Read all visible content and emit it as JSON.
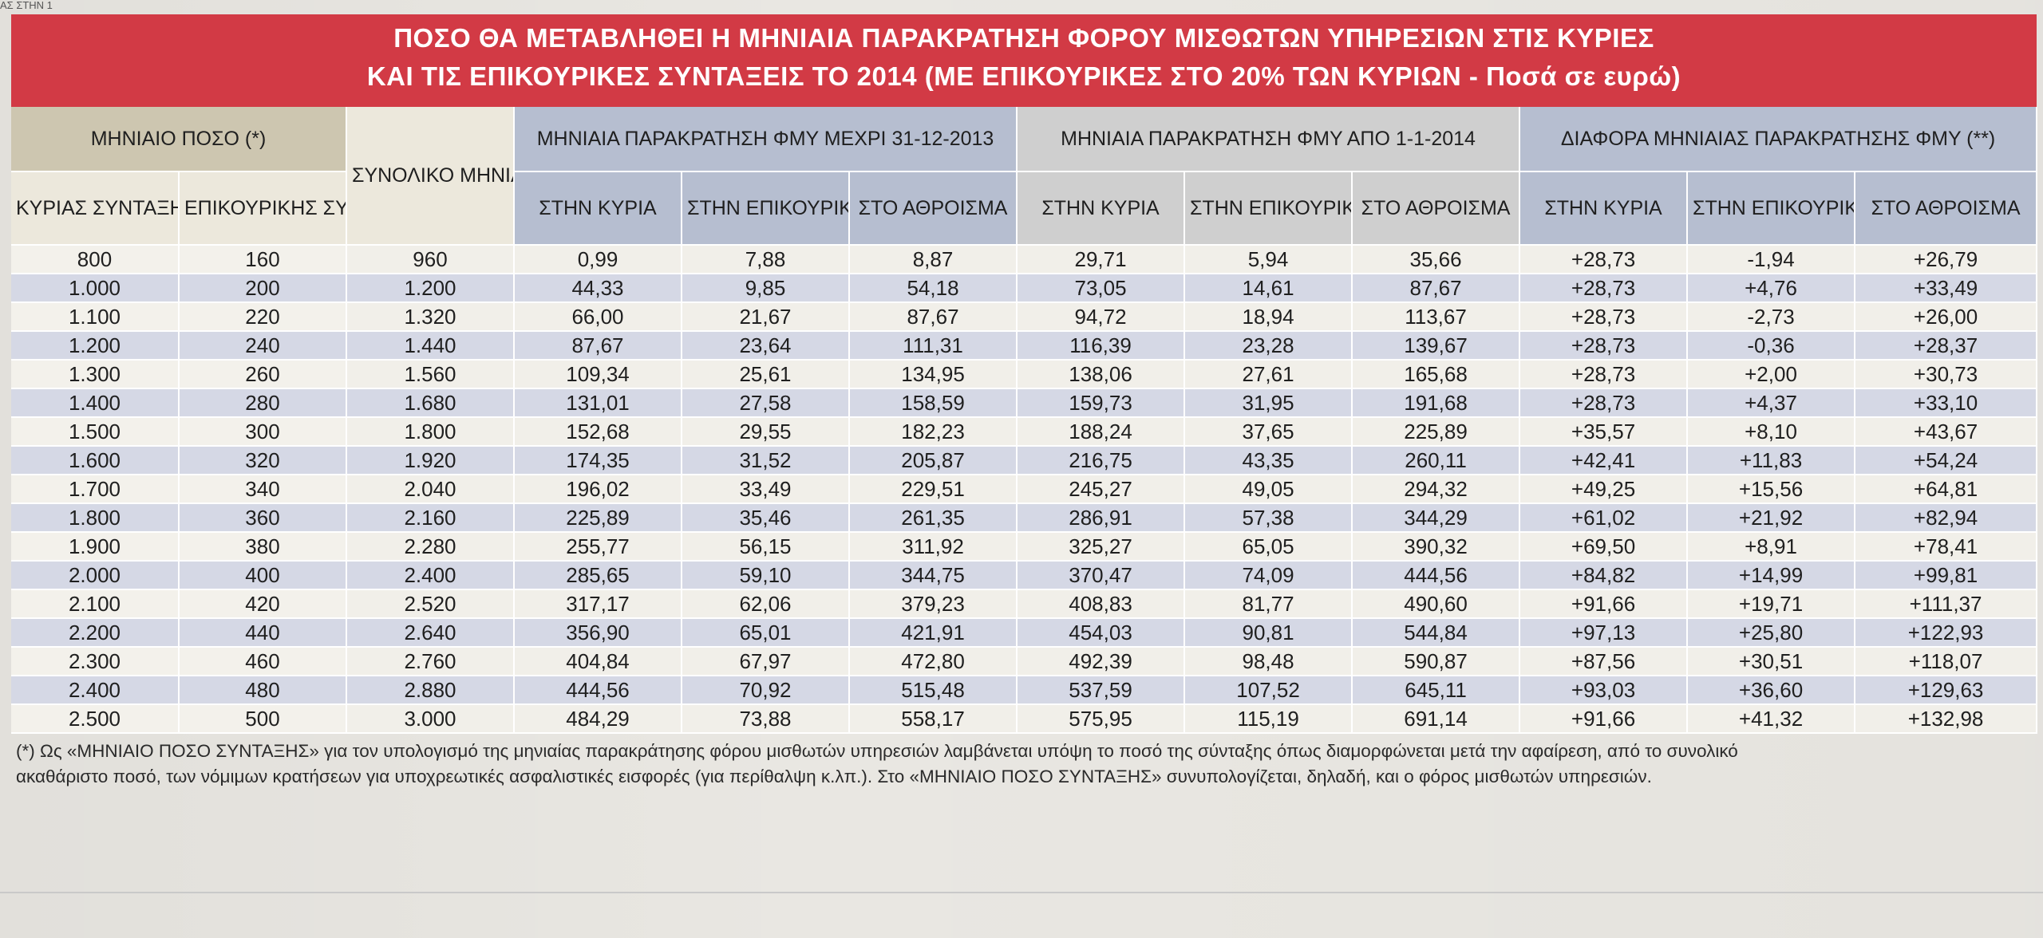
{
  "page_corner_text": "ΑΣ ΣΤΗΝ 1",
  "title": {
    "line1": "ΠΟΣΟ ΘΑ ΜΕΤΑΒΛΗΘΕΙ Η ΜΗΝΙΑΙΑ ΠΑΡΑΚΡΑΤΗΣΗ ΦΟΡΟΥ ΜΙΣΘΩΤΩΝ ΥΠΗΡΕΣΙΩΝ ΣΤΙΣ ΚΥΡΙΕΣ",
    "line2": "ΚΑΙ ΤΙΣ ΕΠΙΚΟΥΡΙΚΕΣ ΣΥΝΤΑΞΕΙΣ ΤΟ 2014  (ΜΕ ΕΠΙΚΟΥΡΙΚΕΣ ΣΤΟ 20% ΤΩΝ ΚΥΡΙΩΝ - Ποσά σε ευρώ)"
  },
  "header": {
    "group_monthly_amount": "ΜΗΝΙΑΙΟ ΠΟΣΟ (*)",
    "total_amount": "ΣΥΝΟΛΙΚΟ ΜΗΝΙΑΙΟ ΠΟΣΟ ΣΥΝΤΑΞΕΩΝ",
    "group_until_2013": "ΜΗΝΙΑΙΑ ΠΑΡΑΚΡΑΤΗΣΗ ΦΜΥ ΜΕΧΡΙ 31-12-2013",
    "group_from_2014": "ΜΗΝΙΑΙΑ ΠΑΡΑΚΡΑΤΗΣΗ ΦΜΥ ΑΠΟ 1-1-2014",
    "group_difference": "ΔΙΑΦΟΡΑ ΜΗΝΙΑΙΑΣ ΠΑΡΑΚΡΑΤΗΣΗΣ ΦΜΥ (**)",
    "main_pension": "ΚΥΡΙΑΣ ΣΥΝΤΑΞΗΣ",
    "aux_pension": "ΕΠΙΚΟΥΡΙΚΗΣ ΣΥΝΤΑΞΗΣ",
    "sub_main": "ΣΤΗΝ ΚΥΡΙΑ",
    "sub_aux": "ΣΤΗΝ ΕΠΙΚΟΥΡΙΚΗ",
    "sub_total": "ΣΤΟ ΑΘΡΟΙΣΜΑ"
  },
  "rows": [
    [
      "800",
      "160",
      "960",
      "0,99",
      "7,88",
      "8,87",
      "29,71",
      "5,94",
      "35,66",
      "+28,73",
      "-1,94",
      "+26,79"
    ],
    [
      "1.000",
      "200",
      "1.200",
      "44,33",
      "9,85",
      "54,18",
      "73,05",
      "14,61",
      "87,67",
      "+28,73",
      "+4,76",
      "+33,49"
    ],
    [
      "1.100",
      "220",
      "1.320",
      "66,00",
      "21,67",
      "87,67",
      "94,72",
      "18,94",
      "113,67",
      "+28,73",
      "-2,73",
      "+26,00"
    ],
    [
      "1.200",
      "240",
      "1.440",
      "87,67",
      "23,64",
      "111,31",
      "116,39",
      "23,28",
      "139,67",
      "+28,73",
      "-0,36",
      "+28,37"
    ],
    [
      "1.300",
      "260",
      "1.560",
      "109,34",
      "25,61",
      "134,95",
      "138,06",
      "27,61",
      "165,68",
      "+28,73",
      "+2,00",
      "+30,73"
    ],
    [
      "1.400",
      "280",
      "1.680",
      "131,01",
      "27,58",
      "158,59",
      "159,73",
      "31,95",
      "191,68",
      "+28,73",
      "+4,37",
      "+33,10"
    ],
    [
      "1.500",
      "300",
      "1.800",
      "152,68",
      "29,55",
      "182,23",
      "188,24",
      "37,65",
      "225,89",
      "+35,57",
      "+8,10",
      "+43,67"
    ],
    [
      "1.600",
      "320",
      "1.920",
      "174,35",
      "31,52",
      "205,87",
      "216,75",
      "43,35",
      "260,11",
      "+42,41",
      "+11,83",
      "+54,24"
    ],
    [
      "1.700",
      "340",
      "2.040",
      "196,02",
      "33,49",
      "229,51",
      "245,27",
      "49,05",
      "294,32",
      "+49,25",
      "+15,56",
      "+64,81"
    ],
    [
      "1.800",
      "360",
      "2.160",
      "225,89",
      "35,46",
      "261,35",
      "286,91",
      "57,38",
      "344,29",
      "+61,02",
      "+21,92",
      "+82,94"
    ],
    [
      "1.900",
      "380",
      "2.280",
      "255,77",
      "56,15",
      "311,92",
      "325,27",
      "65,05",
      "390,32",
      "+69,50",
      "+8,91",
      "+78,41"
    ],
    [
      "2.000",
      "400",
      "2.400",
      "285,65",
      "59,10",
      "344,75",
      "370,47",
      "74,09",
      "444,56",
      "+84,82",
      "+14,99",
      "+99,81"
    ],
    [
      "2.100",
      "420",
      "2.520",
      "317,17",
      "62,06",
      "379,23",
      "408,83",
      "81,77",
      "490,60",
      "+91,66",
      "+19,71",
      "+111,37"
    ],
    [
      "2.200",
      "440",
      "2.640",
      "356,90",
      "65,01",
      "421,91",
      "454,03",
      "90,81",
      "544,84",
      "+97,13",
      "+25,80",
      "+122,93"
    ],
    [
      "2.300",
      "460",
      "2.760",
      "404,84",
      "67,97",
      "472,80",
      "492,39",
      "98,48",
      "590,87",
      "+87,56",
      "+30,51",
      "+118,07"
    ],
    [
      "2.400",
      "480",
      "2.880",
      "444,56",
      "70,92",
      "515,48",
      "537,59",
      "107,52",
      "645,11",
      "+93,03",
      "+36,60",
      "+129,63"
    ],
    [
      "2.500",
      "500",
      "3.000",
      "484,29",
      "73,88",
      "558,17",
      "575,95",
      "115,19",
      "691,14",
      "+91,66",
      "+41,32",
      "+132,98"
    ]
  ],
  "footnote": {
    "line1": "(*) Ως «ΜΗΝΙΑΙΟ ΠΟΣΟ ΣΥΝΤΑΞΗΣ» για τον υπολογισμό της μηνιαίας παρακράτησης φόρου μισθωτών υπηρεσιών λαμβάνεται υπόψη το ποσό της σύνταξης όπως διαμορφώνεται μετά την αφαίρεση, από το συνολικό",
    "line2": "ακαθάριστο ποσό, των νόμιμων κρατήσεων για υποχρεωτικές ασφαλιστικές εισφορές (για περίθαλψη κ.λπ.). Στο «ΜΗΝΙΑΙΟ ΠΟΣΟ ΣΥΝΤΑΞΗΣ» συνυπολογίζεται, δηλαδή, και ο φόρος μισθωτών υπηρεσιών."
  },
  "colors": {
    "title_red": "#d23a45",
    "header_beige": "#cdc6b0",
    "header_blue": "#b6bed0",
    "row_stripe_blue": "#d5d8e5"
  }
}
